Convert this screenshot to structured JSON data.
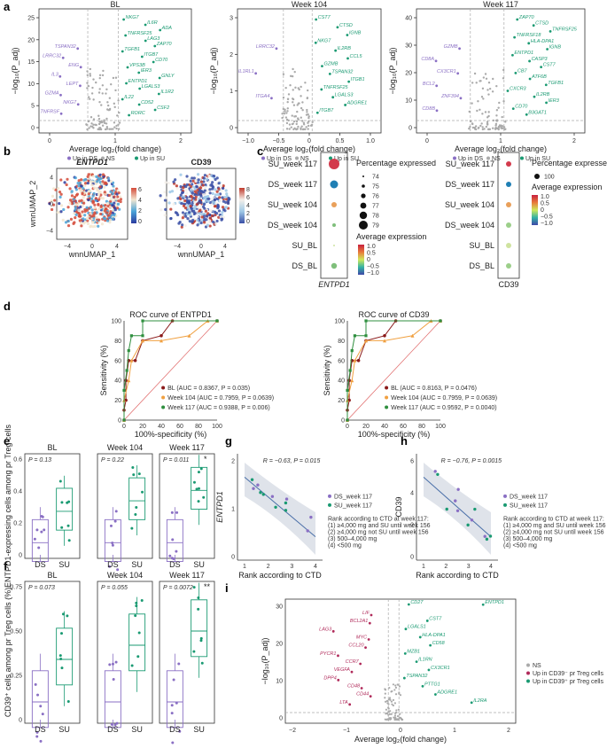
{
  "panels": {
    "a": {
      "label": "a",
      "ylabel": "−log₁₀(P_adj)",
      "xlabel": "Average log₂(fold change)",
      "legend": [
        "Up in DS",
        "NS",
        "Up in SU"
      ],
      "colors": {
        "up_ds": "#8a6fc4",
        "ns": "#aaaaaa",
        "up_su": "#1a9a72"
      },
      "plots": [
        {
          "title": "BL",
          "xticks": [
            "0",
            "1",
            "2"
          ],
          "yticks": [
            "0",
            "5",
            "10",
            "15",
            "20",
            "25"
          ],
          "su_genes": [
            "NKG7",
            "IL6R",
            "ADA",
            "TNFRSF25",
            "LAG3",
            "ZAP70",
            "TGFB1",
            "ITGB7",
            "CD70",
            "VPS3B",
            "IER3",
            "GNLY",
            "ENTPD1",
            "LGALS3",
            "IL1R2",
            "IL22",
            "CD52",
            "CSF2",
            "RORC"
          ],
          "ds_genes": [
            "TSPAN32",
            "LRRC32",
            "ENG",
            "IL3",
            "LEPT",
            "GZMA",
            "NKG7",
            "TNFRSF"
          ]
        },
        {
          "title": "Week 104",
          "xticks": [
            "−1.0",
            "−0.5",
            "0",
            "0.5",
            "1.0"
          ],
          "yticks": [
            "0",
            "1",
            "2",
            "3"
          ],
          "su_genes": [
            "CST7",
            "CTSD",
            "IGNB",
            "NKG7",
            "IL2RB",
            "CCL5",
            "GZMB",
            "TSPAN32",
            "ITGB1",
            "TNFRSF25",
            "LGALS3",
            "ADGRE1",
            "ITGB7"
          ],
          "ds_genes": [
            "LRRC32",
            "IL1RL1",
            "ITGA4"
          ]
        },
        {
          "title": "Week 117",
          "xticks": [
            "0",
            "1",
            "2"
          ],
          "yticks": [
            "0",
            "10",
            "20",
            "30",
            "40"
          ],
          "su_genes": [
            "ZAP70",
            "CTSD",
            "TNFRSF25",
            "TNFRSF18",
            "HLA-DPA1",
            "IGNB",
            "ENTPD1",
            "CASP3",
            "CST7",
            "CB7",
            "ATF6B",
            "TGFB1",
            "CXCR3",
            "IL2RB",
            "IER3",
            "CD70",
            "B3GAT1"
          ],
          "ds_genes": [
            "GZMB",
            "CD8A",
            "CX3CR1",
            "BCL2",
            "ZNF394",
            "CD8B"
          ]
        }
      ]
    },
    "b": {
      "label": "b",
      "ylabel": "wnnUMAP_2",
      "xlabel": "wnnUMAP_1",
      "xticks": [
        "−4",
        "0",
        "4"
      ],
      "yticks": [
        "−4",
        "0",
        "4"
      ],
      "plots": [
        {
          "title": "ENTPD1",
          "scale": [
            "6",
            "4",
            "2",
            "0"
          ]
        },
        {
          "title": "CD39",
          "scale": [
            "8",
            "6",
            "4",
            "2",
            "0"
          ]
        }
      ]
    },
    "c": {
      "label": "c",
      "rows": [
        "SU_week 117",
        "DS_week 117",
        "SU_week 104",
        "DS_week 104",
        "SU_BL",
        "DS_BL"
      ],
      "left_xlabel": "ENTPD1",
      "right_xlabel": "CD39",
      "pct_title": "Percentage expressed",
      "pct_values": [
        "74",
        "75",
        "76",
        "77",
        "78",
        "79"
      ],
      "avg_title": "Average expression",
      "avg_ticks": [
        "1.0",
        "0.5",
        "0",
        "−0.5",
        "−1.0"
      ],
      "right_pct_values": [
        "100"
      ]
    },
    "d": {
      "label": "d",
      "xlabel": "100%-specificity (%)",
      "ylabel": "Sensitivity (%)",
      "ticks": [
        "0",
        "20",
        "40",
        "60",
        "80",
        "100"
      ],
      "plots": [
        {
          "title": "ROC curve of ENTPD1",
          "legend": [
            "BL (AUC = 0.8367, P = 0.035)",
            "Week 104 (AUC = 0.7959, P = 0.0639)",
            "Week 117 (AUC = 0.9388, P = 0.006)"
          ]
        },
        {
          "title": "ROC curve of CD39",
          "legend": [
            "BL (AUC = 0.8163, P = 0.0476)",
            "Week 104 (AUC = 0.7959, P = 0.0639)",
            "Week 117 (AUC = 0.9592, P = 0.0040)"
          ]
        }
      ],
      "colors": [
        "#8b1a1a",
        "#f0a040",
        "#2f8f3f"
      ]
    },
    "e": {
      "label": "e",
      "ylabel": "ENTPD1-expressing cells among pr Treg cells",
      "yticks": [
        "0",
        "0.2",
        "0.4",
        "0.6"
      ],
      "groups": [
        "DS",
        "SU"
      ],
      "plots": [
        {
          "title": "BL",
          "pval": "P = 0.13"
        },
        {
          "title": "Week 104",
          "pval": "P = 0.22"
        },
        {
          "title": "Week 117",
          "pval": "P = 0.011",
          "star": "*"
        }
      ]
    },
    "f": {
      "label": "f",
      "ylabel": "CD39⁺ cells among pr Treg cells (%)",
      "yticks": [
        "0",
        "0.25",
        "0.50",
        "0.75"
      ],
      "groups": [
        "DS",
        "SU"
      ],
      "plots": [
        {
          "title": "BL",
          "pval": "P = 0.073"
        },
        {
          "title": "Week 104",
          "pval": "P = 0.055"
        },
        {
          "title": "Week 117",
          "pval": "P = 0.0072",
          "star": "**"
        }
      ]
    },
    "g": {
      "label": "g",
      "ylabel": "ENTPD1",
      "xlabel": "Rank according to CTD",
      "stat": "R = −0.63, P = 0.015",
      "xticks": [
        "1",
        "2",
        "3",
        "4"
      ],
      "yticks": [
        "0",
        "1",
        "2"
      ],
      "legend": [
        "DS_week 117",
        "SU_week 117"
      ],
      "rank_lines": [
        "Rank according to CTD at week 117:",
        "(1) ≥4,000 mg and SU until week 156",
        "(2) ≥4,000 mg not SU until week 156",
        "(3) 500–4,000 mg",
        "(4) <500 mg"
      ]
    },
    "h": {
      "label": "h",
      "ylabel": "CD39",
      "xlabel": "Rank according to CTD",
      "stat": "R = −0.76, P = 0.0015",
      "xticks": [
        "1",
        "2",
        "3",
        "4"
      ],
      "yticks": [
        "0",
        "2",
        "4",
        "6"
      ],
      "legend": [
        "DS_week 117",
        "SU_week 117"
      ],
      "rank_lines": [
        "Rank according to CTD at week 117:",
        "(1) ≥4,000 mg and SU until week 156",
        "(2) ≥4,000 mg not SU until week 156",
        "(3) 500–4,000 mg",
        "(4) <500 mg"
      ]
    },
    "i": {
      "label": "i",
      "ylabel": "−log₁₀(P_adj)",
      "xlabel": "Average log₂(fold change)",
      "xticks": [
        "−2",
        "−1",
        "0",
        "1",
        "2"
      ],
      "yticks": [
        "0",
        "10",
        "20",
        "30"
      ],
      "legend": [
        "NS",
        "Up in CD39⁻ pr Treg cells",
        "Up in CD39⁺ pr Treg cells"
      ],
      "up_genes": [
        "CD27",
        "ENTPD1",
        "CST7",
        "LGALS1",
        "HLA-DPA1",
        "CD58",
        "MZB1",
        "IL1RN",
        "CX3CR1",
        "TSPAN32",
        "PTTG1",
        "ADGRE1",
        "IL2RA"
      ],
      "down_genes": [
        "LIF",
        "BCL2A1",
        "LAG3",
        "MYC",
        "CCL20",
        "PYCR1",
        "CCR7",
        "VEGFA",
        "DPP4",
        "CD48",
        "CD44",
        "LTA"
      ]
    }
  }
}
